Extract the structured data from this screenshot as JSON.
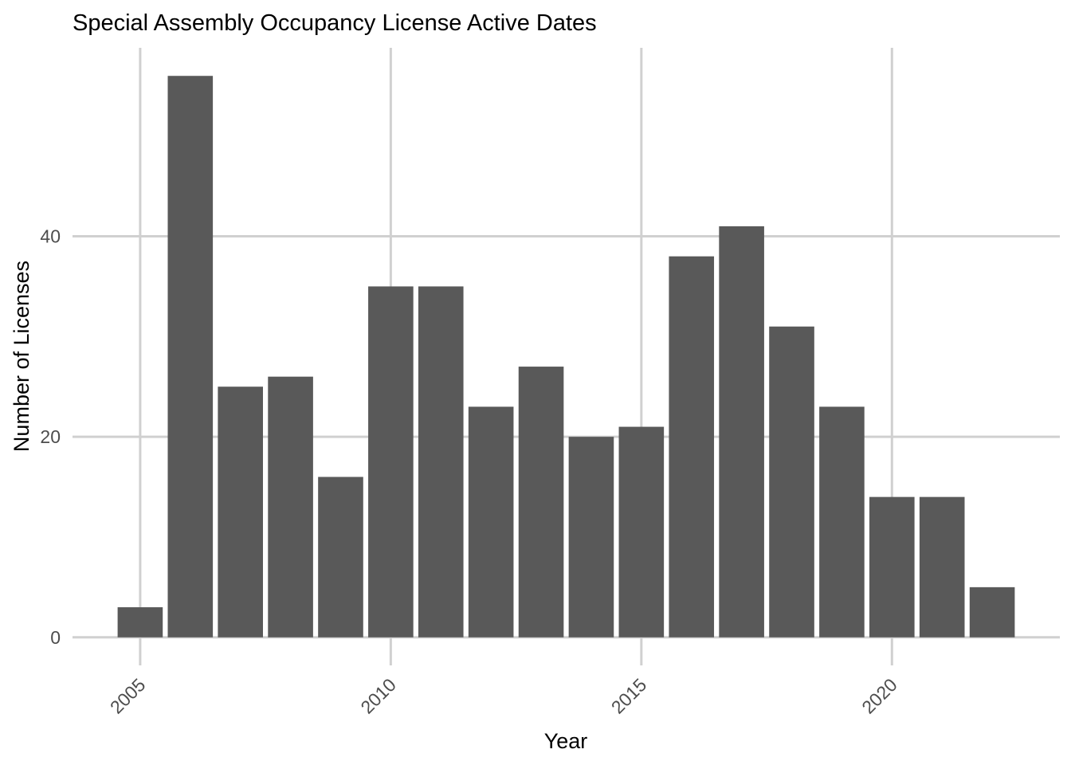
{
  "chart_data": {
    "type": "bar",
    "title": "Special Assembly Occupancy License Active Dates",
    "xlabel": "Year",
    "ylabel": "Number of Licenses",
    "x": [
      2005,
      2006,
      2007,
      2008,
      2009,
      2010,
      2011,
      2012,
      2013,
      2014,
      2015,
      2016,
      2017,
      2018,
      2019,
      2020,
      2021,
      2022
    ],
    "values": [
      3,
      56,
      25,
      26,
      16,
      35,
      35,
      23,
      27,
      20,
      21,
      38,
      41,
      31,
      23,
      14,
      14,
      5
    ],
    "xlim": [
      2003.65,
      2023.35
    ],
    "ylim": [
      -2.8,
      58.8
    ],
    "x_ticks": [
      2005,
      2010,
      2015,
      2020
    ],
    "x_tick_labels": [
      "2005",
      "2010",
      "2015",
      "2020"
    ],
    "x_tick_rotation": 45,
    "y_ticks": [
      0,
      20,
      40
    ],
    "y_tick_labels": [
      "0",
      "20",
      "40"
    ],
    "bar_color": "#595959",
    "grid_color": "#d0d0d0",
    "grid": true,
    "legend": "none",
    "theme": "minimal"
  }
}
